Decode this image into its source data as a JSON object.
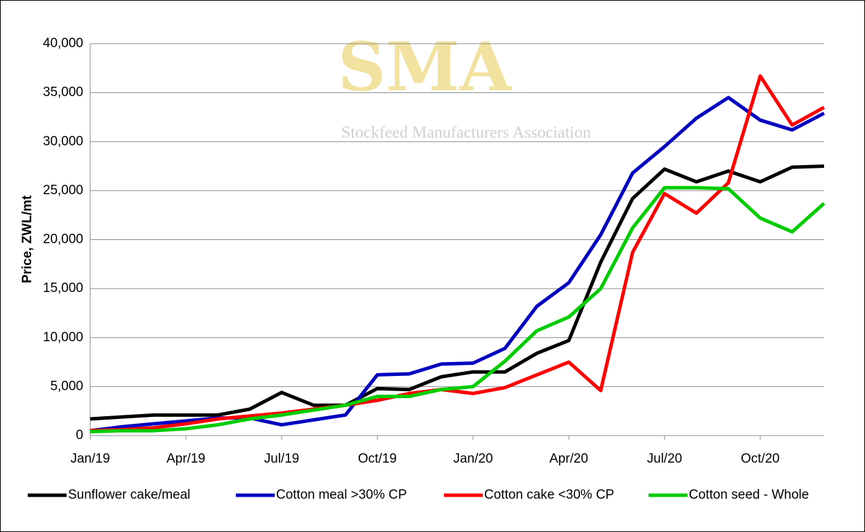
{
  "chart_data": {
    "type": "line",
    "ylabel": "Price, ZWL/mt",
    "watermark_title": "SMA",
    "watermark_subtitle": "Stockfeed Manufacturers Association",
    "categories": [
      "Jan/19",
      null,
      null,
      "Apr/19",
      null,
      null,
      "Jul/19",
      null,
      null,
      "Oct/19",
      null,
      null,
      "Jan/20",
      null,
      null,
      "Apr/20",
      null,
      null,
      "Jul/20",
      null,
      null,
      "Oct/20",
      null,
      null
    ],
    "ylim": [
      0,
      40000
    ],
    "yticks": [
      0,
      {
        "value": 5000,
        "label": "5,000"
      },
      {
        "value": 10000,
        "label": "10,000"
      },
      {
        "value": 15000,
        "label": "15,000"
      },
      {
        "value": 20000,
        "label": "20,000"
      },
      {
        "value": 25000,
        "label": "25,000"
      },
      {
        "value": 30000,
        "label": "30,000"
      },
      {
        "value": 35000,
        "label": "35,000"
      },
      {
        "value": 40000,
        "label": "40,000"
      }
    ],
    "grid": true,
    "legend": "bottom",
    "series": [
      {
        "name": "Sunflower cake/meal",
        "color": "#000000",
        "values": [
          1700,
          1900,
          2100,
          2100,
          2100,
          2700,
          4400,
          3100,
          3100,
          4800,
          4700,
          6000,
          6500,
          6500,
          8400,
          9700,
          17700,
          24200,
          27200,
          25900,
          27000,
          25900,
          27400,
          27500
        ]
      },
      {
        "name": "Cotton meal >30% CP",
        "color": "#0000c0",
        "values": [
          500,
          900,
          1200,
          1500,
          1800,
          1800,
          1100,
          1600,
          2100,
          6200,
          6300,
          7300,
          7400,
          8900,
          13200,
          15600,
          20500,
          26800,
          29500,
          32400,
          34500,
          32200,
          31200,
          32900
        ]
      },
      {
        "name": "Cotton cake <30% CP",
        "color": "#ff0000",
        "values": [
          500,
          600,
          800,
          1200,
          1700,
          2000,
          2300,
          2700,
          3100,
          3600,
          4300,
          4700,
          4300,
          4900,
          6200,
          7500,
          4600,
          18700,
          24700,
          22700,
          25800,
          36700,
          31700,
          33500
        ]
      },
      {
        "name": "Cotton seed - Whole",
        "color": "#00cc00",
        "values": [
          400,
          500,
          500,
          700,
          1100,
          1700,
          2100,
          2600,
          3100,
          4000,
          4000,
          4700,
          5000,
          7600,
          10700,
          12100,
          15000,
          21200,
          25300,
          25300,
          25200,
          22200,
          20800,
          23700
        ]
      }
    ]
  }
}
